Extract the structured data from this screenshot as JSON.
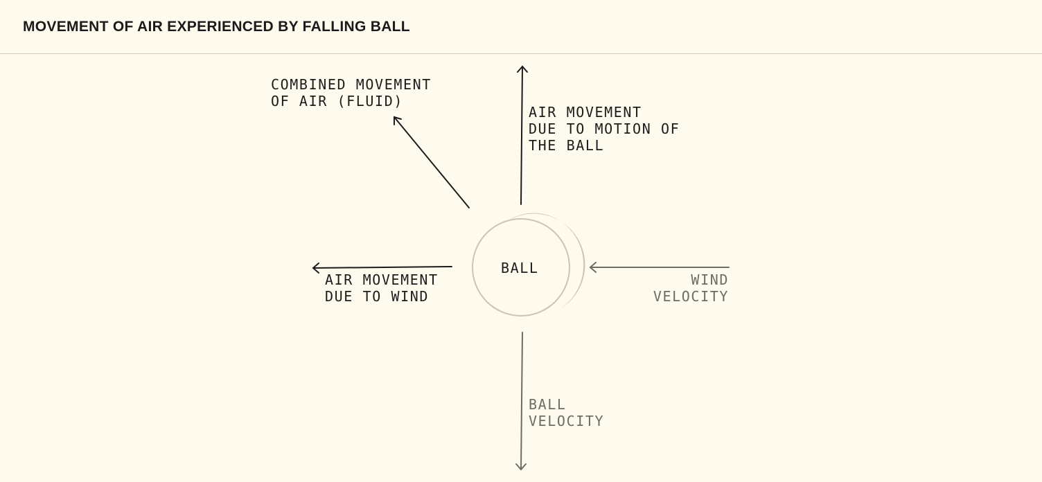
{
  "header": {
    "title": "MOVEMENT OF AIR EXPERIENCED BY FALLING BALL"
  },
  "diagram": {
    "ball_label": "BALL",
    "labels": {
      "combined": [
        "COMBINED MOVEMENT",
        "OF AIR (FLUID)"
      ],
      "motion": [
        "AIR MOVEMENT",
        "DUE TO MOTION OF",
        "THE BALL"
      ],
      "wind_air": [
        "AIR MOVEMENT",
        "DUE TO WIND"
      ],
      "wind_velocity": [
        "WIND",
        "VELOCITY"
      ],
      "ball_velocity": [
        "BALL",
        "VELOCITY"
      ]
    },
    "colors": {
      "background": "#fefaee",
      "dark_text": "#1c1c1c",
      "muted_text": "#6e6b66",
      "ball_outline": "#cdc4b2",
      "ball_shade": "#cdc4b2",
      "divider": "#cfc6b4"
    }
  }
}
